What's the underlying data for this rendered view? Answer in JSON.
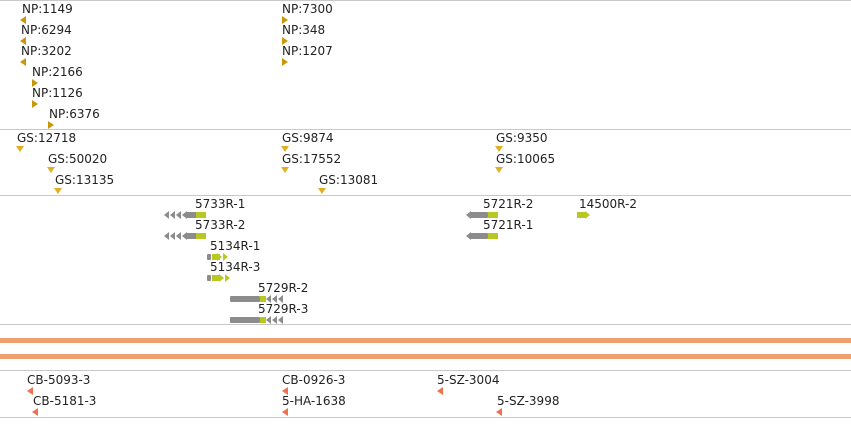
{
  "tracks": {
    "np": {
      "features": [
        {
          "label": "NP:1149"
        },
        {
          "label": "NP:6294"
        },
        {
          "label": "NP:3202"
        },
        {
          "label": "NP:2166"
        },
        {
          "label": "NP:1126"
        },
        {
          "label": "NP:6376"
        },
        {
          "label": "NP:7300"
        },
        {
          "label": "NP:348"
        },
        {
          "label": "NP:1207"
        }
      ]
    },
    "gs": {
      "features": [
        {
          "label": "GS:12718"
        },
        {
          "label": "GS:50020"
        },
        {
          "label": "GS:13135"
        },
        {
          "label": "GS:9874"
        },
        {
          "label": "GS:17552"
        },
        {
          "label": "GS:13081"
        },
        {
          "label": "GS:9350"
        },
        {
          "label": "GS:10065"
        }
      ]
    },
    "genes": {
      "features": [
        {
          "label": "5733R-1"
        },
        {
          "label": "5733R-2"
        },
        {
          "label": "5134R-1"
        },
        {
          "label": "5134R-3"
        },
        {
          "label": "5729R-2"
        },
        {
          "label": "5729R-3"
        },
        {
          "label": "5721R-2"
        },
        {
          "label": "5721R-1"
        },
        {
          "label": "14500R-2"
        }
      ]
    },
    "markers": {
      "features": [
        {
          "label": "CB-5093-3"
        },
        {
          "label": "CB-5181-3"
        },
        {
          "label": "CB-0926-3"
        },
        {
          "label": "5-HA-1638"
        },
        {
          "label": "5-SZ-3004"
        },
        {
          "label": "5-SZ-3998"
        }
      ]
    }
  },
  "colors": {
    "np_marker": "#c8980a",
    "gs_marker": "#e0b020",
    "gene_body": "#8c8c8c",
    "gene_cds": "#b8c820",
    "band": "#f0a070",
    "marker_red": "#f07050"
  }
}
